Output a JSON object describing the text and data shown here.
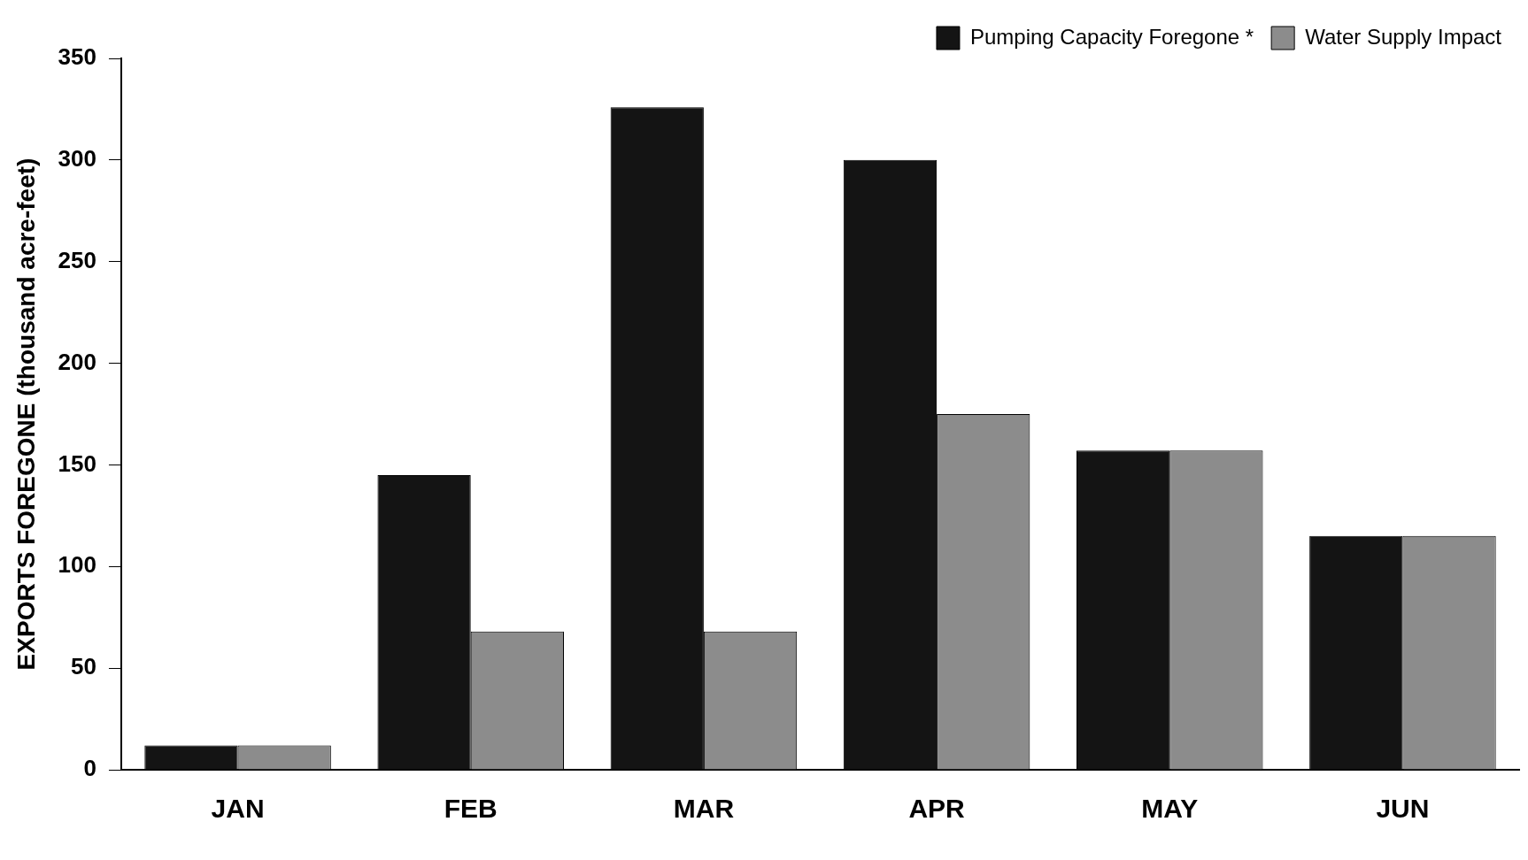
{
  "chart_data": {
    "type": "bar",
    "ylabel": "EXPORTS FOREGONE (thousand acre-feet)",
    "categories": [
      "JAN",
      "FEB",
      "MAR",
      "APR",
      "MAY",
      "JUN"
    ],
    "series": [
      {
        "name": "Pumping Capacity Foregone *",
        "color": "#141414",
        "values": [
          12,
          145,
          326,
          300,
          157,
          115
        ]
      },
      {
        "name": "Water Supply Impact",
        "color": "#8c8c8c",
        "values": [
          12,
          68,
          68,
          175,
          157,
          115
        ]
      }
    ],
    "ylim": [
      0,
      350
    ],
    "yticks": [
      0,
      50,
      100,
      150,
      200,
      250,
      300,
      350
    ],
    "grid": false,
    "legend": "top right"
  }
}
